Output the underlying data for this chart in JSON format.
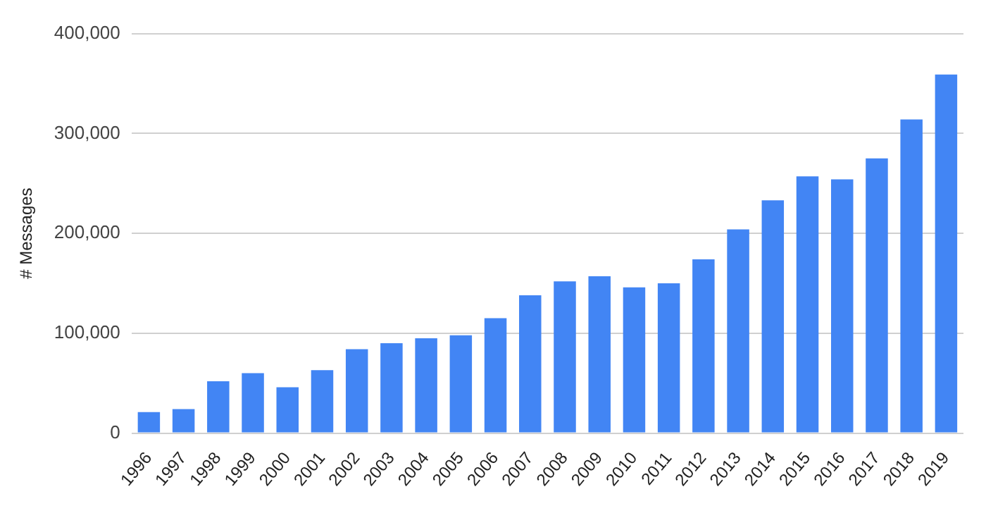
{
  "chart_data": {
    "type": "bar",
    "ylabel": "# Messages",
    "categories": [
      "1996",
      "1997",
      "1998",
      "1999",
      "2000",
      "2001",
      "2002",
      "2003",
      "2004",
      "2005",
      "2006",
      "2007",
      "2008",
      "2009",
      "2010",
      "2011",
      "2012",
      "2013",
      "2014",
      "2015",
      "2016",
      "2017",
      "2018",
      "2019"
    ],
    "values": [
      21000,
      24000,
      52000,
      60000,
      46000,
      63000,
      84000,
      90000,
      95000,
      98000,
      115000,
      138000,
      152000,
      157000,
      146000,
      150000,
      174000,
      204000,
      233000,
      257000,
      254000,
      275000,
      314000,
      359000
    ],
    "color": "#4285f4",
    "ylim": [
      0,
      400000
    ],
    "yticks": [
      0,
      {
        "value": 100000,
        "label": "100,000"
      },
      {
        "value": 200000,
        "label": "200,000"
      },
      {
        "value": 300000,
        "label": "300,000"
      },
      {
        "value": 400000,
        "label": "400,000"
      }
    ],
    "grid": "y",
    "legend": false
  }
}
